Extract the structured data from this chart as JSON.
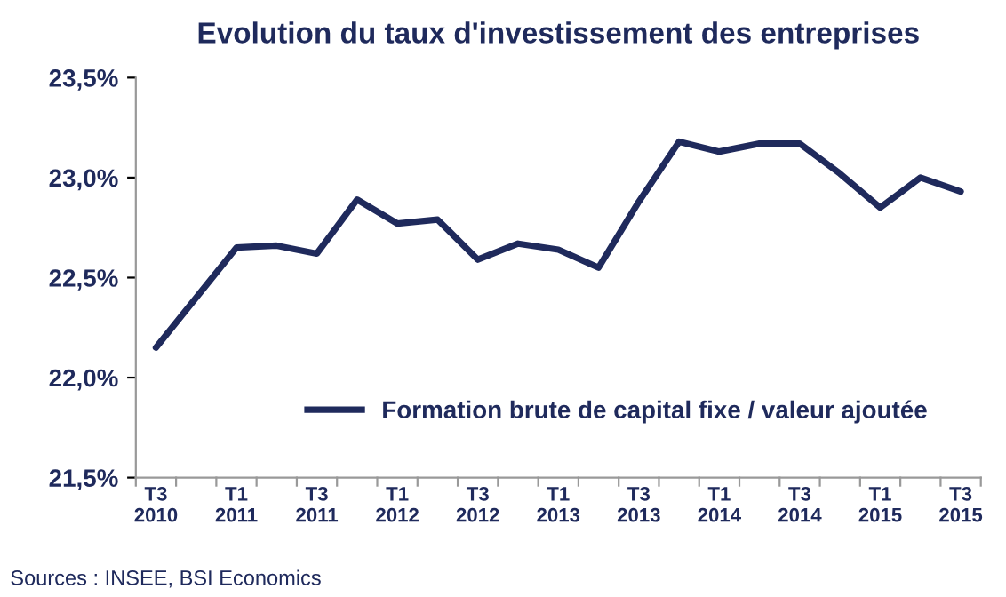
{
  "chart_data": {
    "type": "line",
    "title": "Evolution du taux d'investissement des entreprises",
    "categories": [
      "T3\n2010",
      null,
      "T1\n2011",
      null,
      "T3\n2011",
      null,
      "T1\n2012",
      null,
      "T3\n2012",
      null,
      "T1\n2013",
      null,
      "T3\n2013",
      null,
      "T1\n2014",
      null,
      "T3\n2014",
      null,
      "T1\n2015",
      null,
      "T3\n2015"
    ],
    "series": [
      {
        "name": "Formation brute de capital fixe / valeur ajoutée",
        "color": "#1f2a5c",
        "values": [
          22.15,
          22.4,
          22.65,
          22.66,
          22.62,
          22.89,
          22.77,
          22.79,
          22.59,
          22.67,
          22.64,
          22.55,
          22.88,
          23.18,
          23.13,
          23.17,
          23.17,
          23.02,
          22.85,
          23.0,
          22.93
        ]
      }
    ],
    "ylim": [
      21.5,
      23.5
    ],
    "yticks": [
      {
        "value": 21.5,
        "label": "21,5%"
      },
      {
        "value": 22.0,
        "label": "22,0%"
      },
      {
        "value": 22.5,
        "label": "22,5%"
      },
      {
        "value": 23.0,
        "label": "23,0%"
      },
      {
        "value": 23.5,
        "label": "23,5%"
      }
    ],
    "grid": false,
    "legend": "bottom",
    "line_style": "solid",
    "marker": "none",
    "annotations": [
      "Sources : INSEE, BSI Economics"
    ]
  }
}
